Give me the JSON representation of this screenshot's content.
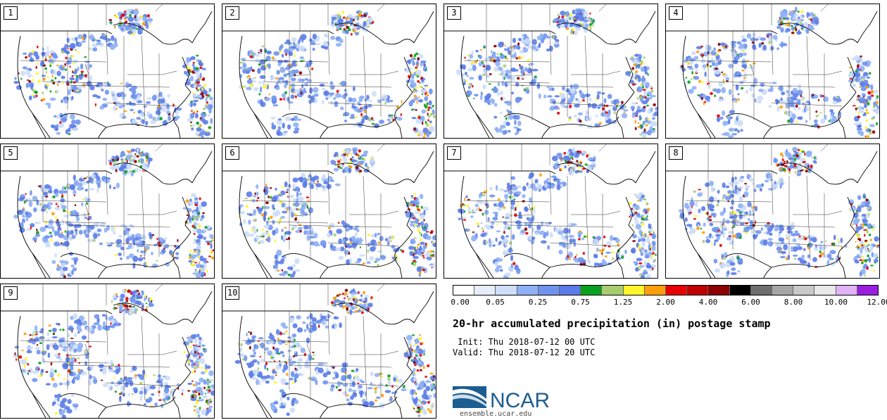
{
  "panels": [
    {
      "label": "1"
    },
    {
      "label": "2"
    },
    {
      "label": "3"
    },
    {
      "label": "4"
    },
    {
      "label": "5"
    },
    {
      "label": "6"
    },
    {
      "label": "7"
    },
    {
      "label": "8"
    },
    {
      "label": "9"
    },
    {
      "label": "10"
    }
  ],
  "colorbar": {
    "colors": [
      "#ffffff",
      "#e6eefc",
      "#cdddfa",
      "#8fb0f5",
      "#6f93ee",
      "#5b7ce8",
      "#08a01c",
      "#a7cd6d",
      "#fff52a",
      "#ff9e0d",
      "#e60000",
      "#c00000",
      "#8b0000",
      "#000000",
      "#6e6e6e",
      "#a6a6a6",
      "#c8c8c8",
      "#e8e8e8",
      "#e1b2f5",
      "#9a1ee0"
    ],
    "tick_labels": [
      "0.00",
      "0.05",
      "0.25",
      "0.75",
      "1.25",
      "2.00",
      "4.00",
      "6.00",
      "8.00",
      "10.00",
      "12.00"
    ]
  },
  "title": "20-hr accumulated precipitation (in) postage stamp",
  "init": " Init: Thu 2018-07-12 00 UTC",
  "valid": "Valid: Thu 2018-07-12 20 UTC",
  "logo": {
    "text": "NCAR",
    "url": "ensemble.ucar.edu",
    "brand_color": "#1b5d91"
  }
}
